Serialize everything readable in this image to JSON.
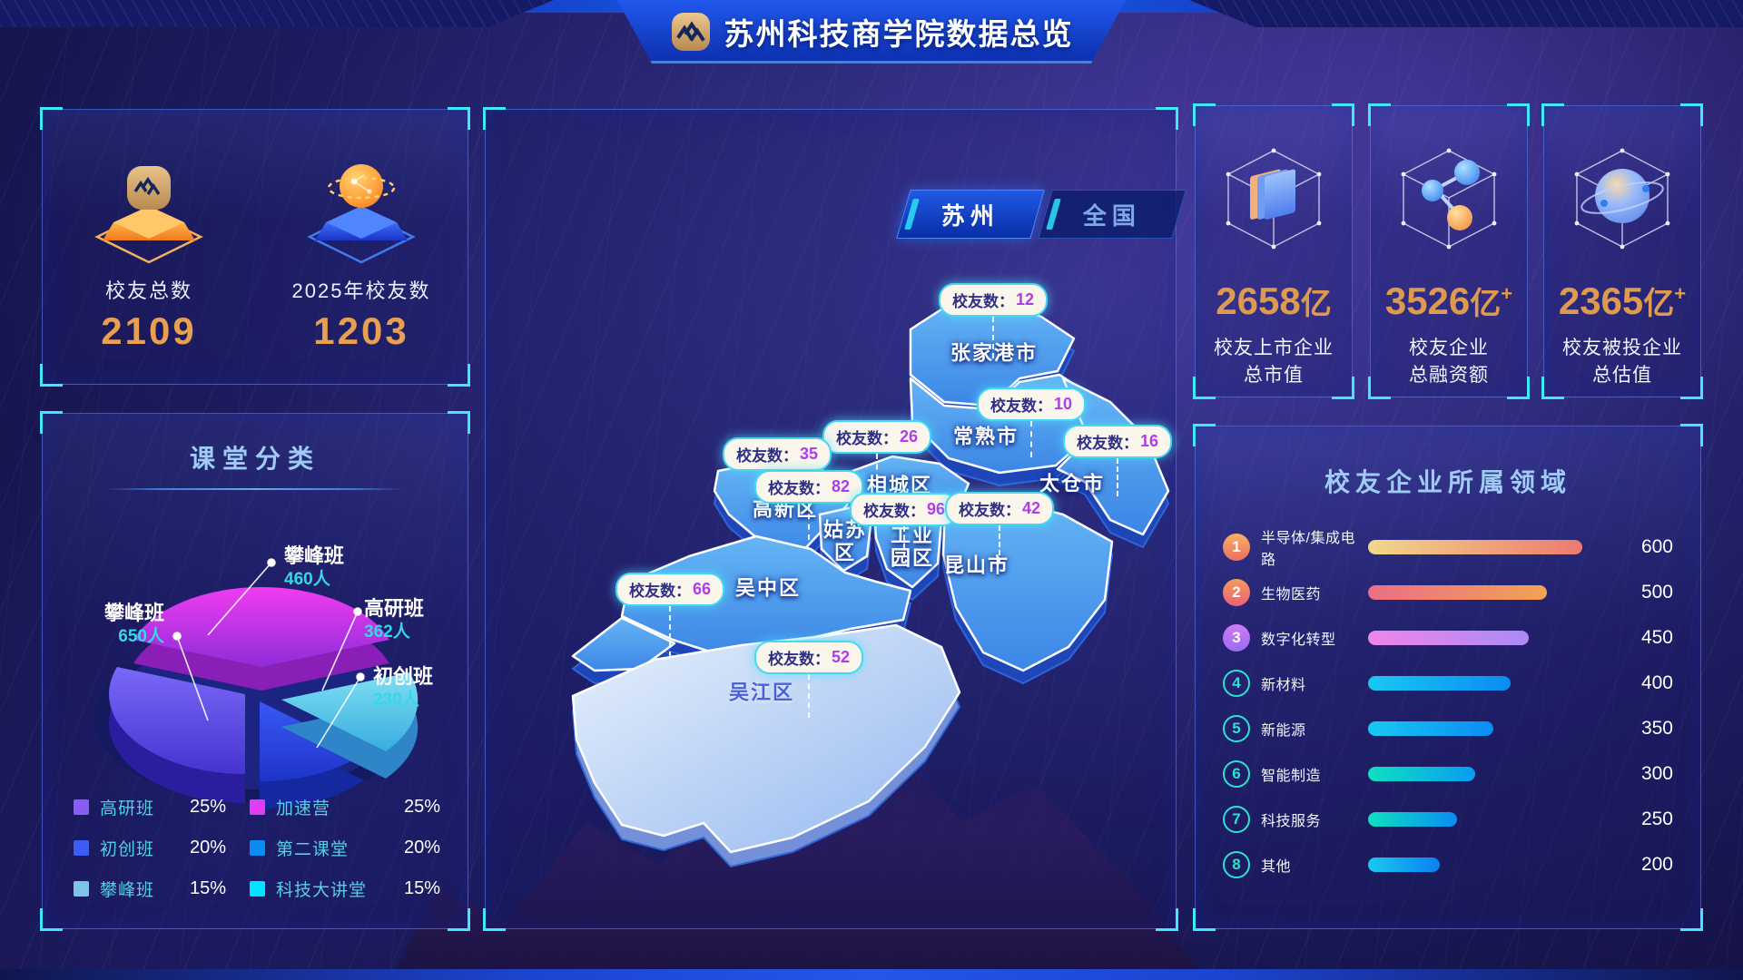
{
  "header": {
    "title": "苏州科技商学院数据总览"
  },
  "overview": {
    "items": [
      {
        "label": "校友总数",
        "value": "2109",
        "icon": "gold-pedestal-logo"
      },
      {
        "label": "2025年校友数",
        "value": "1203",
        "icon": "blue-pedestal-globe"
      }
    ]
  },
  "map_panel": {
    "tabs": [
      {
        "label": "苏州",
        "active": true
      },
      {
        "label": "全国",
        "active": false
      }
    ],
    "badge_prefix": "校友数：",
    "regions": [
      {
        "name": "张家港市",
        "count": "12"
      },
      {
        "name": "常熟市",
        "count": "10"
      },
      {
        "name": "太仓市",
        "count": "16"
      },
      {
        "name": "相城区",
        "count": "26"
      },
      {
        "name": "高新区",
        "count": "35"
      },
      {
        "name": "姑苏区",
        "display": "姑苏\n区",
        "count": "82"
      },
      {
        "name": "工业园区",
        "display": "工业\n园区",
        "count": "96"
      },
      {
        "name": "昆山市",
        "count": "42"
      },
      {
        "name": "吴中区",
        "count": "66"
      },
      {
        "name": "吴江区",
        "count": "52",
        "light": true
      }
    ]
  },
  "stats": [
    {
      "value": "2658",
      "unit": "亿",
      "plus": "",
      "label_line1": "校友上市企业",
      "label_line2": "总市值",
      "icon": "cube-documents"
    },
    {
      "value": "3526",
      "unit": "亿",
      "plus": "+",
      "label_line1": "校友企业",
      "label_line2": "总融资额",
      "icon": "cube-molecule"
    },
    {
      "value": "2365",
      "unit": "亿",
      "plus": "+",
      "label_line1": "校友被投企业",
      "label_line2": "总估值",
      "icon": "cube-planet"
    }
  ],
  "chart_data": [
    {
      "type": "pie",
      "title": "课堂分类",
      "slices": [
        {
          "label": "高研班",
          "pct": "25%",
          "value": 25,
          "color": "#8a5cf6"
        },
        {
          "label": "初创班",
          "pct": "20%",
          "value": 20,
          "color": "#3d5bf5"
        },
        {
          "label": "攀峰班",
          "pct": "15%",
          "value": 15,
          "color": "#7cc4ea"
        },
        {
          "label": "加速营",
          "pct": "25%",
          "value": 25,
          "color": "#e23bf2"
        },
        {
          "label": "第二课堂",
          "pct": "20%",
          "value": 20,
          "color": "#0a8cf0"
        },
        {
          "label": "科技大讲堂",
          "pct": "15%",
          "value": 15,
          "color": "#00e4ff"
        }
      ],
      "callouts": [
        {
          "label": "攀峰班",
          "value": "460人"
        },
        {
          "label": "高研班",
          "value": "362人"
        },
        {
          "label": "初创班",
          "value": "230人"
        },
        {
          "label": "攀峰班",
          "value": "650人"
        }
      ],
      "legend_position": "bottom"
    },
    {
      "type": "bar",
      "title": "校友企业所属领域",
      "orientation": "horizontal",
      "xlim": [
        0,
        600
      ],
      "categories": [
        "半导体/集成电路",
        "生物医药",
        "数字化转型",
        "新材料",
        "新能源",
        "智能制造",
        "科技服务",
        "其他"
      ],
      "values": [
        600,
        500,
        450,
        400,
        350,
        300,
        250,
        200
      ],
      "rows": [
        {
          "rank": "1",
          "label": "半导体/集成电路",
          "value": 600,
          "bar_from": "#f2d88a",
          "bar_to": "#ec7a6e",
          "badge_from": "#f6b066",
          "badge_to": "#ec6e62",
          "badge_filled": true
        },
        {
          "rank": "2",
          "label": "生物医药",
          "value": 500,
          "bar_from": "#ec6e86",
          "bar_to": "#f2a254",
          "badge_from": "#f49b5e",
          "badge_to": "#e96276",
          "badge_filled": true
        },
        {
          "rank": "3",
          "label": "数字化转型",
          "value": 450,
          "bar_from": "#f085ea",
          "bar_to": "#a98bf5",
          "badge_from": "#cf7bf5",
          "badge_to": "#9a6bf0",
          "badge_filled": true
        },
        {
          "rank": "4",
          "label": "新材料",
          "value": 400,
          "bar_from": "#19c9f2",
          "bar_to": "#0a8cf2",
          "badge_filled": false
        },
        {
          "rank": "5",
          "label": "新能源",
          "value": 350,
          "bar_from": "#19c9f2",
          "bar_to": "#0a8cf2",
          "badge_filled": false
        },
        {
          "rank": "6",
          "label": "智能制造",
          "value": 300,
          "bar_from": "#0ee0c0",
          "bar_to": "#0a9cf2",
          "badge_filled": false
        },
        {
          "rank": "7",
          "label": "科技服务",
          "value": 250,
          "bar_from": "#0ee0c0",
          "bar_to": "#0a8cf2",
          "badge_filled": false
        },
        {
          "rank": "8",
          "label": "其他",
          "value": 200,
          "bar_from": "#19c9f2",
          "bar_to": "#0a80f0",
          "badge_filled": false
        }
      ]
    }
  ],
  "colors": {
    "accent_cyan": "#3fe8fa",
    "gold": "#de9b50",
    "badge_border": "#45d8f2",
    "map_blue": "#4aa2ee"
  }
}
